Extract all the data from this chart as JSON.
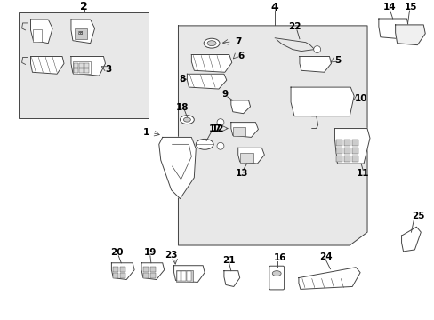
{
  "bg_color": "#ffffff",
  "line_color": "#444444",
  "text_color": "#000000",
  "fill_color": "#e8e8e8",
  "white": "#ffffff",
  "gray": "#cccccc",
  "lgray": "#dddddd",
  "fig_width": 4.89,
  "fig_height": 3.6,
  "dpi": 100
}
